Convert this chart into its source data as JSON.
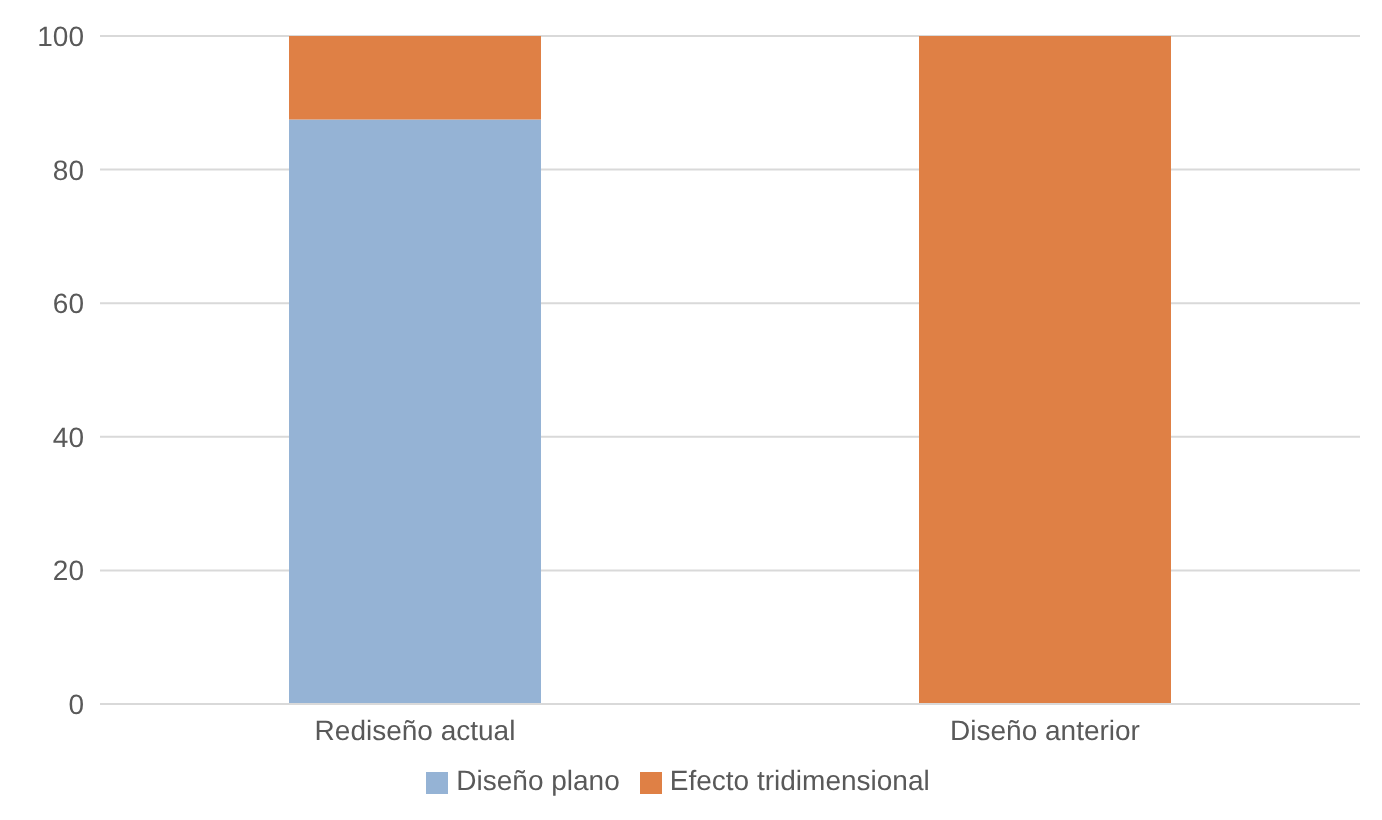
{
  "chart_data": {
    "type": "bar",
    "stacked": true,
    "categories": [
      "Rediseño actual",
      "Diseño anterior"
    ],
    "series": [
      {
        "name": "Diseño plano",
        "color": "#95b3d5",
        "values": [
          87.5,
          0
        ]
      },
      {
        "name": "Efecto tridimensional",
        "color": "#df8045",
        "values": [
          12.5,
          100
        ]
      }
    ],
    "ylim": [
      0,
      100
    ],
    "yticks": [
      0,
      20,
      40,
      60,
      80,
      100
    ],
    "grid": "y",
    "legend": "bottom"
  }
}
